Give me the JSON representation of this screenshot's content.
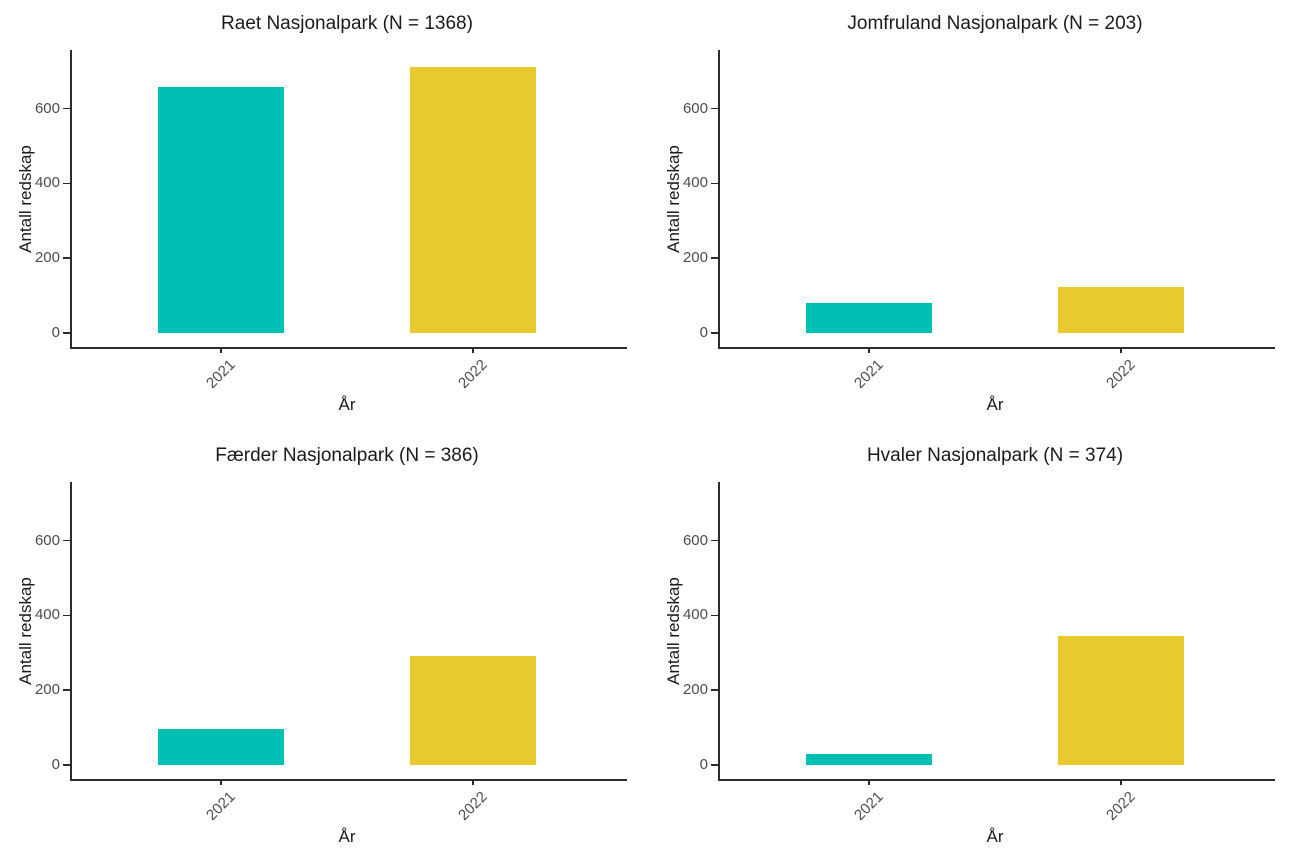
{
  "figure_title": "",
  "palette": {
    "bar_2021": "#00BFB3",
    "bar_2022": "#E8C930",
    "axis_line": "#2b2b2b",
    "tick_text": "#4d4d4d",
    "title_text": "#1a1a1a"
  },
  "chart_data": [
    {
      "type": "bar",
      "title": "Raet Nasjonalpark (N = 1368)",
      "categories": [
        "2021",
        "2022"
      ],
      "values": [
        658,
        710
      ],
      "colors": [
        "#00BFB3",
        "#E8C930"
      ],
      "xlabel": "År",
      "ylabel": "Antall redskap",
      "yticks": [
        0,
        200,
        400,
        600
      ],
      "ylim": [
        0,
        760
      ],
      "grid": "off",
      "legend": "none"
    },
    {
      "type": "bar",
      "title": "Jomfruland Nasjonalpark (N = 203)",
      "categories": [
        "2021",
        "2022"
      ],
      "values": [
        80,
        123
      ],
      "colors": [
        "#00BFB3",
        "#E8C930"
      ],
      "xlabel": "År",
      "ylabel": "Antall redskap",
      "yticks": [
        0,
        200,
        400,
        600
      ],
      "ylim": [
        0,
        760
      ],
      "grid": "off",
      "legend": "none"
    },
    {
      "type": "bar",
      "title": "Færder Nasjonalpark (N = 386)",
      "categories": [
        "2021",
        "2022"
      ],
      "values": [
        95,
        291
      ],
      "colors": [
        "#00BFB3",
        "#E8C930"
      ],
      "xlabel": "År",
      "ylabel": "Antall redskap",
      "yticks": [
        0,
        200,
        400,
        600
      ],
      "ylim": [
        0,
        760
      ],
      "grid": "off",
      "legend": "none"
    },
    {
      "type": "bar",
      "title": "Hvaler Nasjonalpark (N = 374)",
      "categories": [
        "2021",
        "2022"
      ],
      "values": [
        30,
        344
      ],
      "colors": [
        "#00BFB3",
        "#E8C930"
      ],
      "xlabel": "År",
      "ylabel": "Antall redskap",
      "yticks": [
        0,
        200,
        400,
        600
      ],
      "ylim": [
        0,
        760
      ],
      "grid": "off",
      "legend": "none"
    }
  ]
}
